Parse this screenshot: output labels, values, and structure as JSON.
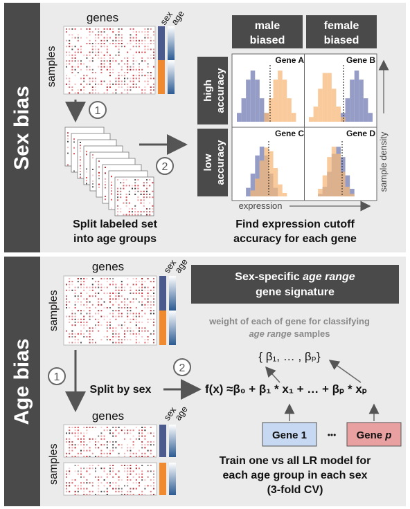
{
  "sex_bias": {
    "sidebar_label": "Sex bias",
    "matrix": {
      "genes_label": "genes",
      "samples_label": "samples",
      "sex_label": "sex",
      "age_label": "age"
    },
    "step1": "1",
    "step2": "2",
    "left_caption_line1": "Split labeled set",
    "left_caption_line2": "into age groups",
    "right_caption_line1": "Find expression cutoff",
    "right_caption_line2": "accuracy for each gene",
    "col_headers": [
      {
        "line1": "male",
        "line2": "biased"
      },
      {
        "line1": "female",
        "line2": "biased"
      }
    ],
    "row_headers": [
      {
        "line1": "high",
        "line2": "accuracy"
      },
      {
        "line1": "low",
        "line2": "accuracy"
      }
    ],
    "genes": [
      "Gene A",
      "Gene B",
      "Gene C",
      "Gene D"
    ],
    "x_axis_label": "expression",
    "y_axis_label": "sample density"
  },
  "age_bias": {
    "sidebar_label": "Age bias",
    "matrix": {
      "genes_label": "genes",
      "samples_label": "samples",
      "sex_label": "sex",
      "age_label": "age"
    },
    "signature_title_line1_pre": "Sex-specific ",
    "signature_title_line1_em": "age range",
    "signature_title_line2": "gene signature",
    "weight_note_line1": "weight of each of gene for classifying",
    "weight_note_line2_em": "age range",
    "weight_note_line2_post": " samples",
    "beta_set": "{ β₁, … , βₚ}",
    "step1": "1",
    "step2": "2",
    "split_label": "Split by sex",
    "formula": "f(x) ≈β₀ + β₁ * x₁ + … + βₚ * xₚ",
    "gene1_label": "Gene 1",
    "dots": "•••",
    "genep_label_pre": "Gene ",
    "genep_label_em": "p",
    "bottom_genes_label": "genes",
    "bottom_samples_label": "samples",
    "caption_line1": "Train one vs all LR model for",
    "caption_line2": "each age group in each sex",
    "caption_line3": "(3-fold CV)"
  },
  "colors": {
    "panel_bg": "#ebebeb",
    "header_dark": "#4a4a4a",
    "male_blue": "#4a5a8c",
    "female_orange": "#f08a30",
    "hist_blue": "#8f98c4",
    "hist_orange": "#f7b87a",
    "gene1_fill": "#c7d8f2",
    "genep_fill": "#e9a0a0",
    "dot_red": "#c8202a"
  }
}
